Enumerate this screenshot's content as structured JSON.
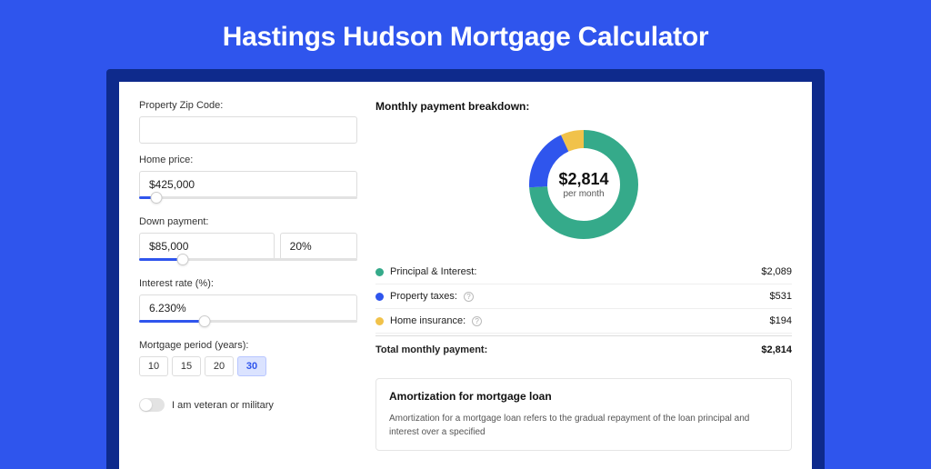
{
  "title": "Hastings Hudson Mortgage Calculator",
  "colors": {
    "page_bg": "#2f55ed",
    "outer_bg": "#0e2a8c",
    "accent": "#2f55ed",
    "principal": "#35aa8a",
    "taxes": "#2f55ed",
    "insurance": "#f1c24a"
  },
  "form": {
    "zip_label": "Property Zip Code:",
    "zip_value": "",
    "home_price_label": "Home price:",
    "home_price_value": "$425,000",
    "home_price_slider_pct": 8,
    "down_payment_label": "Down payment:",
    "down_payment_value": "$85,000",
    "down_payment_pct": "20%",
    "down_payment_slider_pct": 20,
    "interest_label": "Interest rate (%):",
    "interest_value": "6.230%",
    "interest_slider_pct": 30,
    "period_label": "Mortgage period (years):",
    "periods": [
      "10",
      "15",
      "20",
      "30"
    ],
    "period_active_index": 3,
    "veteran_label": "I am veteran or military",
    "veteran_on": false
  },
  "breakdown": {
    "title": "Monthly payment breakdown:",
    "center_amount": "$2,814",
    "center_sub": "per month",
    "donut": {
      "radius": 50,
      "stroke": 20,
      "slices": [
        {
          "key": "principal",
          "pct": 74,
          "color": "#35aa8a"
        },
        {
          "key": "taxes",
          "pct": 19,
          "color": "#2f55ed"
        },
        {
          "key": "insurance",
          "pct": 7,
          "color": "#f1c24a"
        }
      ]
    },
    "rows": [
      {
        "key": "principal",
        "label": "Principal & Interest:",
        "value": "$2,089",
        "color": "#35aa8a",
        "info": false
      },
      {
        "key": "taxes",
        "label": "Property taxes:",
        "value": "$531",
        "color": "#2f55ed",
        "info": true
      },
      {
        "key": "insurance",
        "label": "Home insurance:",
        "value": "$194",
        "color": "#f1c24a",
        "info": true
      }
    ],
    "total_label": "Total monthly payment:",
    "total_value": "$2,814"
  },
  "amortization": {
    "title": "Amortization for mortgage loan",
    "text": "Amortization for a mortgage loan refers to the gradual repayment of the loan principal and interest over a specified"
  }
}
